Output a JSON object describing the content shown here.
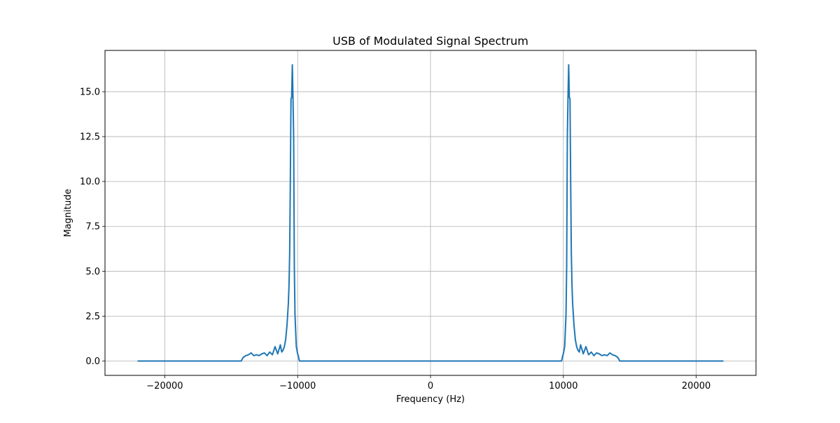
{
  "chart_data": {
    "type": "line",
    "title": "USB of Modulated Signal Spectrum",
    "xlabel": "Frequency (Hz)",
    "ylabel": "Magnitude",
    "xlim": [
      -24500,
      24500
    ],
    "ylim": [
      -0.8,
      17.3
    ],
    "xticks": [
      -20000,
      -10000,
      0,
      10000,
      20000
    ],
    "xtick_labels": [
      "−20000",
      "−10000",
      "0",
      "10000",
      "20000"
    ],
    "yticks": [
      0.0,
      2.5,
      5.0,
      7.5,
      10.0,
      12.5,
      15.0
    ],
    "ytick_labels": [
      "0.0",
      "2.5",
      "5.0",
      "7.5",
      "10.0",
      "12.5",
      "15.0"
    ],
    "grid": true,
    "series_color": "#1f77b4",
    "series": [
      {
        "x": [
          -22050,
          -14250,
          -14100,
          -13900,
          -13700,
          -13500,
          -13300,
          -13100,
          -12900,
          -12700,
          -12500,
          -12300,
          -12100,
          -11900,
          -11700,
          -11500,
          -11300,
          -11200,
          -11100,
          -11000,
          -10900,
          -10800,
          -10700,
          -10650,
          -10600,
          -10550,
          -10500,
          -10450,
          -10400,
          -10350,
          -10300,
          -10250,
          -10200,
          -10150,
          -10100,
          -10050,
          -10000,
          -9950,
          -9900,
          -9850,
          9850,
          9900,
          9950,
          10000,
          10050,
          10100,
          10150,
          10200,
          10250,
          10300,
          10350,
          10400,
          10450,
          10500,
          10550,
          10600,
          10650,
          10700,
          10800,
          10900,
          11000,
          11100,
          11200,
          11300,
          11500,
          11700,
          11900,
          12100,
          12300,
          12500,
          12700,
          12900,
          13100,
          13300,
          13500,
          13700,
          13900,
          14100,
          14250,
          22050
        ],
        "y": [
          0,
          0,
          0.2,
          0.3,
          0.35,
          0.45,
          0.3,
          0.35,
          0.3,
          0.4,
          0.45,
          0.3,
          0.5,
          0.35,
          0.8,
          0.4,
          0.9,
          0.5,
          0.6,
          0.8,
          1.2,
          2.0,
          3.2,
          4.2,
          6.0,
          10.0,
          14.6,
          14.7,
          16.5,
          14.7,
          12.5,
          5.3,
          2.6,
          1.7,
          0.8,
          0.6,
          0.4,
          0.3,
          0.1,
          0,
          0,
          0.1,
          0.3,
          0.4,
          0.6,
          0.8,
          1.7,
          2.6,
          5.3,
          12.5,
          14.7,
          16.5,
          14.7,
          14.6,
          10.0,
          6.0,
          4.2,
          3.2,
          2.0,
          1.2,
          0.8,
          0.6,
          0.5,
          0.9,
          0.4,
          0.8,
          0.35,
          0.5,
          0.3,
          0.45,
          0.4,
          0.3,
          0.35,
          0.3,
          0.45,
          0.35,
          0.3,
          0.2,
          0,
          0
        ]
      }
    ]
  }
}
